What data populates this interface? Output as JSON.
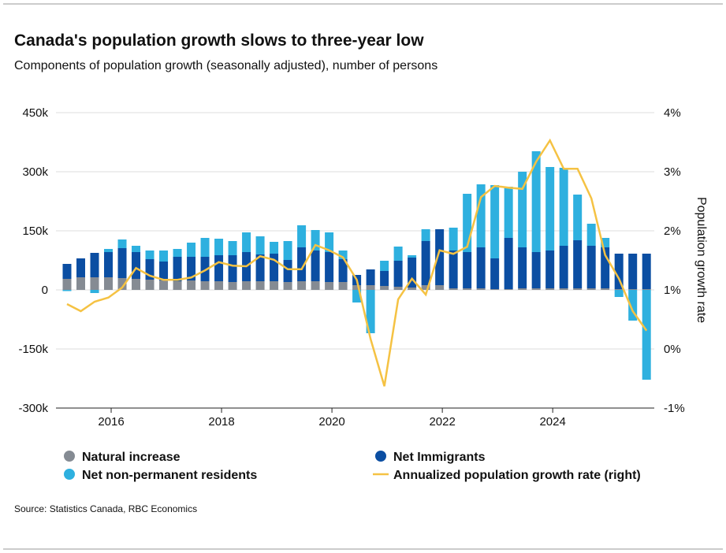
{
  "chart_data": {
    "type": "bar",
    "stacked": true,
    "title": "Canada's population growth slows to three-year low",
    "subtitle": "Components of population growth (seasonally adjusted), number of persons",
    "y2_label": "Population growth rate",
    "source": "Source: Statistics Canada, RBC Economics",
    "x": [
      2015.2,
      2015.45,
      2015.7,
      2015.95,
      2016.2,
      2016.45,
      2016.7,
      2016.95,
      2017.2,
      2017.45,
      2017.7,
      2017.95,
      2018.2,
      2018.45,
      2018.7,
      2018.95,
      2019.2,
      2019.45,
      2019.7,
      2019.95,
      2020.2,
      2020.45,
      2020.7,
      2020.95,
      2021.2,
      2021.45,
      2021.7,
      2021.95,
      2022.2,
      2022.45,
      2022.7,
      2022.95,
      2023.2,
      2023.45,
      2023.7,
      2023.95,
      2024.2,
      2024.45,
      2024.7,
      2024.95,
      2025.2,
      2025.45,
      2025.7
    ],
    "xlim": [
      2015,
      2025.84
    ],
    "xticks": [
      2016,
      2018,
      2020,
      2022,
      2024
    ],
    "ylim": [
      -300000,
      450000
    ],
    "yticks": [
      {
        "value": -300000,
        "label": "-300k"
      },
      {
        "value": -150000,
        "label": "-150k"
      },
      0,
      {
        "value": 150000,
        "label": "150k"
      },
      {
        "value": 300000,
        "label": "300k"
      },
      {
        "value": 450000,
        "label": "450k"
      }
    ],
    "y2lim": [
      -1,
      4
    ],
    "y2ticks": [
      {
        "value": -1,
        "label": "-1%"
      },
      {
        "value": 0,
        "label": "0%"
      },
      {
        "value": 1,
        "label": "1%"
      },
      {
        "value": 2,
        "label": "2%"
      },
      {
        "value": 3,
        "label": "3%"
      },
      {
        "value": 4,
        "label": "4%"
      }
    ],
    "grid": true,
    "series": [
      {
        "name": "Natural increase",
        "color": "#858b93",
        "type": "bar",
        "values": [
          28000,
          32000,
          32000,
          32000,
          30000,
          28000,
          26000,
          24000,
          22000,
          24000,
          22000,
          22000,
          20000,
          22000,
          22000,
          22000,
          20000,
          22000,
          22000,
          20000,
          20000,
          12000,
          12000,
          10000,
          8000,
          6000,
          12000,
          12000,
          4000,
          4000,
          4000,
          2000,
          2000,
          4000,
          4000,
          4000,
          4000,
          4000,
          4000,
          4000,
          2000,
          2000,
          2000
        ]
      },
      {
        "name": "Net Immigrants",
        "color": "#0b4ea2",
        "type": "bar",
        "values": [
          38000,
          48000,
          62000,
          64000,
          76000,
          68000,
          52000,
          48000,
          62000,
          60000,
          62000,
          66000,
          68000,
          74000,
          68000,
          70000,
          56000,
          86000,
          78000,
          76000,
          58000,
          26000,
          40000,
          38000,
          66000,
          76000,
          112000,
          142000,
          96000,
          92000,
          104000,
          78000,
          130000,
          104000,
          92000,
          96000,
          108000,
          122000,
          108000,
          104000,
          90000,
          90000,
          90000
        ]
      },
      {
        "name": "Net non-permanent residents",
        "color": "#2eb0df",
        "type": "bar",
        "values": [
          -3000,
          0,
          -8000,
          8000,
          22000,
          16000,
          22000,
          28000,
          20000,
          36000,
          48000,
          42000,
          36000,
          50000,
          46000,
          30000,
          48000,
          56000,
          52000,
          50000,
          22000,
          -32000,
          -110000,
          26000,
          36000,
          6000,
          30000,
          0,
          58000,
          148000,
          160000,
          186000,
          130000,
          192000,
          256000,
          212000,
          198000,
          116000,
          56000,
          24000,
          -18000,
          -78000,
          -228000
        ]
      },
      {
        "name": "Annualized population growth rate (right)",
        "color": "#f5c243",
        "type": "line",
        "axis": "y2",
        "values": [
          0.76,
          0.64,
          0.8,
          0.87,
          1.04,
          1.37,
          1.24,
          1.17,
          1.17,
          1.21,
          1.33,
          1.47,
          1.41,
          1.4,
          1.57,
          1.51,
          1.35,
          1.35,
          1.76,
          1.67,
          1.55,
          1.17,
          0.17,
          -0.63,
          0.84,
          1.19,
          0.92,
          1.67,
          1.61,
          1.73,
          2.57,
          2.76,
          2.73,
          2.71,
          3.17,
          3.53,
          3.05,
          3.05,
          2.55,
          1.59,
          1.19,
          0.64,
          0.31
        ]
      }
    ]
  }
}
